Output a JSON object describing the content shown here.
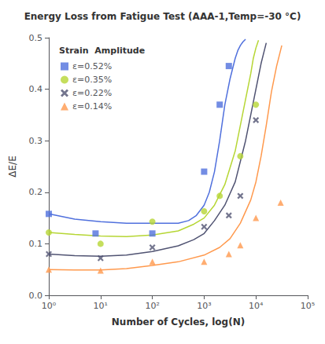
{
  "chart_data": {
    "type": "scatter",
    "title": "Energy Loss from Fatigue Test (AAA-1,Temp=-30 °C)",
    "xlabel": "Number of Cycles, log(N)",
    "ylabel": "ΔE/E",
    "legend_title": "Strain  Amplitude",
    "log": "x",
    "xlim": [
      1,
      100000
    ],
    "xticks": [
      {
        "value": 1,
        "label": "10⁰"
      },
      {
        "value": 10,
        "label": "10¹"
      },
      {
        "value": 100,
        "label": "10²"
      },
      {
        "value": 1000,
        "label": "10³"
      },
      {
        "value": 10000,
        "label": "10⁴"
      },
      {
        "value": 100000,
        "label": "10⁵"
      }
    ],
    "ylim": [
      0,
      0.5
    ],
    "yticks": [
      {
        "value": 0,
        "label": "0.0"
      },
      0.1,
      0.2,
      0.3,
      0.4,
      0.5
    ],
    "grid": false,
    "legend": "upper left",
    "series": [
      {
        "name": "ε=0.52%",
        "marker": "s",
        "x": [
          1,
          8,
          100,
          1000,
          2000,
          3000
        ],
        "values": [
          0.158,
          0.12,
          0.12,
          0.24,
          0.37,
          0.445
        ],
        "curve": {
          "x": [
            1,
            3.1622776601683795,
            10,
            31.622776601683793,
            100,
            316.22776601683796,
            501.18723362727224,
            707.9457843841379,
            1000,
            1258.9254117941673,
            1584.893192461114,
            1995.2623149688795,
            2511.88643150958,
            3162.2776601683795,
            3981.0717055349724,
            4466.835921509631,
            5011.872336272725,
            5623.413251903491,
            6309.57344480193
          ],
          "y": [
            0.158,
            0.148,
            0.143,
            0.14,
            0.14,
            0.14,
            0.145,
            0.155,
            0.175,
            0.2,
            0.24,
            0.3,
            0.37,
            0.42,
            0.46,
            0.475,
            0.485,
            0.492,
            0.497
          ]
        }
      },
      {
        "name": "ε=0.35%",
        "marker": "o",
        "x": [
          1,
          10,
          100,
          1000,
          2000,
          5000,
          10000
        ],
        "values": [
          0.122,
          0.1,
          0.143,
          0.163,
          0.193,
          0.27,
          0.37
        ],
        "curve": {
          "x": [
            1,
            3.1622776601683795,
            10,
            31.622776601683793,
            100,
            316.22776601683796,
            630.957344480193,
            1000,
            1584.893192461114,
            2511.88643150958,
            3981.0717055349724,
            6309.57344480193,
            7943.282347242815,
            8912.509381337455,
            10000,
            11220.184543019634
          ],
          "y": [
            0.122,
            0.118,
            0.115,
            0.114,
            0.117,
            0.125,
            0.138,
            0.15,
            0.175,
            0.215,
            0.28,
            0.38,
            0.43,
            0.46,
            0.48,
            0.495
          ]
        }
      },
      {
        "name": "ε=0.22%",
        "marker": "x",
        "x": [
          1,
          10,
          100,
          1000,
          3000,
          5000,
          10000
        ],
        "values": [
          0.08,
          0.072,
          0.093,
          0.133,
          0.155,
          0.193,
          0.34
        ],
        "curve": {
          "x": [
            1,
            3.1622776601683795,
            10,
            31.622776601683793,
            100,
            316.22776601683796,
            630.957344480193,
            1000,
            1584.893192461114,
            2511.88643150958,
            3981.0717055349724,
            6309.57344480193,
            10000,
            12589.254117941673,
            14125.375446227543,
            15848.93192461114
          ],
          "y": [
            0.08,
            0.077,
            0.076,
            0.078,
            0.085,
            0.096,
            0.108,
            0.12,
            0.145,
            0.175,
            0.22,
            0.3,
            0.4,
            0.45,
            0.47,
            0.49
          ]
        }
      },
      {
        "name": "ε=0.14%",
        "marker": "^",
        "x": [
          1,
          10,
          100,
          1000,
          3000,
          5000,
          10000,
          30000
        ],
        "values": [
          0.05,
          0.048,
          0.065,
          0.065,
          0.08,
          0.097,
          0.15,
          0.18
        ],
        "curve": {
          "x": [
            1,
            3.1622776601683795,
            10,
            31.622776601683793,
            100,
            316.22776601683796,
            1000,
            1995.2623149688795,
            3162.2776601683795,
            5011.872336272725,
            7943.282347242815,
            10000,
            12589.254117941673,
            15848.93192461114,
            19952.623149688796,
            25118.864315095823,
            31622.776601683792
          ],
          "y": [
            0.05,
            0.049,
            0.049,
            0.052,
            0.058,
            0.065,
            0.078,
            0.093,
            0.11,
            0.14,
            0.185,
            0.22,
            0.27,
            0.33,
            0.395,
            0.445,
            0.485
          ]
        }
      }
    ]
  }
}
